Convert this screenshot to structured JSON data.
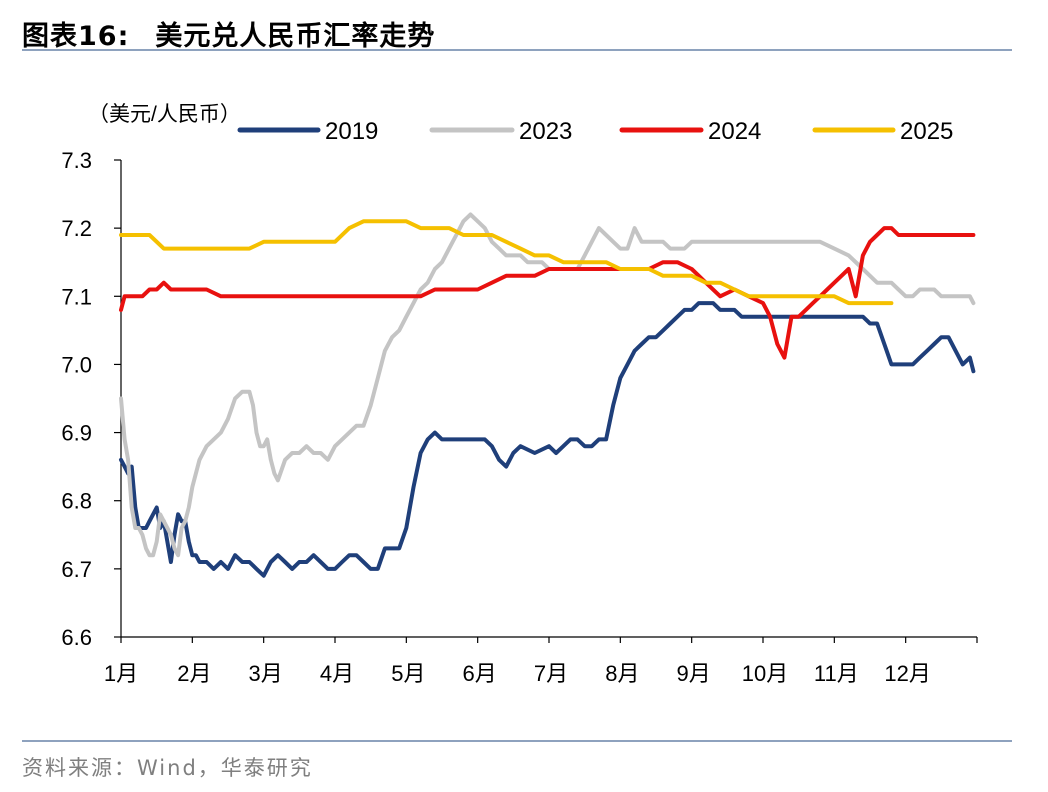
{
  "header": {
    "figure_label": "图表16:",
    "figure_title": "美元兑人民币汇率走势"
  },
  "source": "资料来源：Wind，华泰研究",
  "chart_data": {
    "type": "line",
    "title": "美元兑人民币汇率走势",
    "unit_label": "（美元/人民币）",
    "xlabel": "",
    "ylabel": "（美元/人民币）",
    "ylim": [
      6.6,
      7.3
    ],
    "y_ticks": [
      "6.6",
      "6.7",
      "6.8",
      "6.9",
      "7.0",
      "7.1",
      "7.2",
      "7.3"
    ],
    "x_range": [
      0,
      12
    ],
    "x_ticks": [
      "1月",
      "2月",
      "3月",
      "4月",
      "5月",
      "6月",
      "7月",
      "8月",
      "9月",
      "10月",
      "11月",
      "12月"
    ],
    "legend_position": "top",
    "colors": {
      "2019": "#1f3f7a",
      "2023": "#c4c4c4",
      "2024": "#e8110f",
      "2025": "#f5c000"
    },
    "series": [
      {
        "name": "2019",
        "x": [
          0.0,
          0.05,
          0.1,
          0.15,
          0.2,
          0.25,
          0.3,
          0.35,
          0.4,
          0.5,
          0.55,
          0.6,
          0.7,
          0.75,
          0.8,
          0.85,
          0.9,
          0.95,
          1.0,
          1.05,
          1.1,
          1.15,
          1.2,
          1.3,
          1.4,
          1.5,
          1.6,
          1.7,
          1.8,
          1.9,
          2.0,
          2.1,
          2.2,
          2.3,
          2.4,
          2.5,
          2.6,
          2.7,
          2.8,
          2.9,
          3.0,
          3.1,
          3.2,
          3.3,
          3.4,
          3.5,
          3.6,
          3.7,
          3.8,
          3.9,
          4.0,
          4.1,
          4.2,
          4.3,
          4.4,
          4.5,
          4.6,
          4.7,
          4.8,
          4.9,
          5.0,
          5.1,
          5.2,
          5.3,
          5.4,
          5.5,
          5.6,
          5.8,
          6.0,
          6.1,
          6.2,
          6.3,
          6.4,
          6.5,
          6.6,
          6.7,
          6.8,
          6.9,
          7.0,
          7.1,
          7.2,
          7.3,
          7.4,
          7.5,
          7.6,
          7.7,
          7.8,
          7.9,
          8.0,
          8.1,
          8.2,
          8.3,
          8.4,
          8.5,
          8.6,
          8.7,
          8.8,
          8.9,
          9.0,
          9.2,
          9.4,
          9.6,
          9.8,
          10.0,
          10.2,
          10.4,
          10.5,
          10.6,
          10.7,
          10.8,
          10.9,
          11.0,
          11.1,
          11.2,
          11.3,
          11.4,
          11.5,
          11.6,
          11.7,
          11.8,
          11.9,
          11.95
        ],
        "values": [
          6.86,
          6.85,
          6.84,
          6.85,
          6.79,
          6.76,
          6.76,
          6.76,
          6.77,
          6.79,
          6.76,
          6.77,
          6.71,
          6.75,
          6.78,
          6.77,
          6.77,
          6.74,
          6.72,
          6.72,
          6.71,
          6.71,
          6.71,
          6.7,
          6.71,
          6.7,
          6.72,
          6.71,
          6.71,
          6.7,
          6.69,
          6.71,
          6.72,
          6.71,
          6.7,
          6.71,
          6.71,
          6.72,
          6.71,
          6.7,
          6.7,
          6.71,
          6.72,
          6.72,
          6.71,
          6.7,
          6.7,
          6.73,
          6.73,
          6.73,
          6.76,
          6.82,
          6.87,
          6.89,
          6.9,
          6.89,
          6.89,
          6.89,
          6.89,
          6.89,
          6.89,
          6.89,
          6.88,
          6.86,
          6.85,
          6.87,
          6.88,
          6.87,
          6.88,
          6.87,
          6.88,
          6.89,
          6.89,
          6.88,
          6.88,
          6.89,
          6.89,
          6.94,
          6.98,
          7.0,
          7.02,
          7.03,
          7.04,
          7.04,
          7.05,
          7.06,
          7.07,
          7.08,
          7.08,
          7.09,
          7.09,
          7.09,
          7.08,
          7.08,
          7.08,
          7.07,
          7.07,
          7.07,
          7.07,
          7.07,
          7.07,
          7.07,
          7.07,
          7.07,
          7.07,
          7.07,
          7.06,
          7.06,
          7.03,
          7.0,
          7.0,
          7.0,
          7.0,
          7.01,
          7.02,
          7.03,
          7.04,
          7.04,
          7.02,
          7.0,
          7.01,
          6.99
        ],
        "label_note": ""
      },
      {
        "name": "2023",
        "x": [
          0.0,
          0.05,
          0.1,
          0.15,
          0.2,
          0.25,
          0.3,
          0.35,
          0.4,
          0.45,
          0.5,
          0.55,
          0.6,
          0.7,
          0.75,
          0.8,
          0.85,
          0.9,
          0.95,
          1.0,
          1.1,
          1.2,
          1.3,
          1.4,
          1.5,
          1.6,
          1.7,
          1.8,
          1.85,
          1.9,
          1.95,
          2.0,
          2.05,
          2.1,
          2.15,
          2.2,
          2.3,
          2.4,
          2.5,
          2.6,
          2.7,
          2.8,
          2.9,
          3.0,
          3.1,
          3.2,
          3.3,
          3.4,
          3.5,
          3.6,
          3.7,
          3.8,
          3.9,
          4.0,
          4.1,
          4.2,
          4.3,
          4.4,
          4.5,
          4.6,
          4.7,
          4.8,
          4.9,
          5.0,
          5.1,
          5.2,
          5.3,
          5.4,
          5.5,
          5.6,
          5.7,
          5.8,
          5.9,
          6.0,
          6.1,
          6.2,
          6.3,
          6.4,
          6.5,
          6.6,
          6.7,
          6.8,
          6.9,
          7.0,
          7.1,
          7.2,
          7.3,
          7.4,
          7.5,
          7.6,
          7.7,
          7.8,
          7.9,
          8.0,
          8.1,
          8.2,
          8.3,
          8.4,
          8.6,
          8.8,
          9.0,
          9.2,
          9.4,
          9.6,
          9.8,
          10.0,
          10.2,
          10.4,
          10.6,
          10.8,
          10.9,
          11.0,
          11.1,
          11.2,
          11.3,
          11.4,
          11.5,
          11.6,
          11.7,
          11.8,
          11.9,
          11.95
        ],
        "values": [
          6.95,
          6.89,
          6.86,
          6.79,
          6.76,
          6.76,
          6.75,
          6.73,
          6.72,
          6.72,
          6.74,
          6.78,
          6.77,
          6.75,
          6.73,
          6.72,
          6.76,
          6.77,
          6.79,
          6.82,
          6.86,
          6.88,
          6.89,
          6.9,
          6.92,
          6.95,
          6.96,
          6.96,
          6.94,
          6.9,
          6.88,
          6.88,
          6.89,
          6.86,
          6.84,
          6.83,
          6.86,
          6.87,
          6.87,
          6.88,
          6.87,
          6.87,
          6.86,
          6.88,
          6.89,
          6.9,
          6.91,
          6.91,
          6.94,
          6.98,
          7.02,
          7.04,
          7.05,
          7.07,
          7.09,
          7.11,
          7.12,
          7.14,
          7.15,
          7.17,
          7.19,
          7.21,
          7.22,
          7.21,
          7.2,
          7.18,
          7.17,
          7.16,
          7.16,
          7.16,
          7.15,
          7.15,
          7.15,
          7.14,
          7.14,
          7.14,
          7.14,
          7.14,
          7.16,
          7.18,
          7.2,
          7.19,
          7.18,
          7.17,
          7.17,
          7.2,
          7.18,
          7.18,
          7.18,
          7.18,
          7.17,
          7.17,
          7.17,
          7.18,
          7.18,
          7.18,
          7.18,
          7.18,
          7.18,
          7.18,
          7.18,
          7.18,
          7.18,
          7.18,
          7.18,
          7.17,
          7.16,
          7.14,
          7.12,
          7.12,
          7.11,
          7.1,
          7.1,
          7.11,
          7.11,
          7.11,
          7.1,
          7.1,
          7.1,
          7.1,
          7.1,
          7.09
        ],
        "label_note": ""
      },
      {
        "name": "2024",
        "x": [
          0.0,
          0.05,
          0.1,
          0.2,
          0.3,
          0.4,
          0.5,
          0.6,
          0.7,
          0.8,
          0.9,
          1.0,
          1.2,
          1.4,
          1.6,
          1.8,
          2.0,
          2.2,
          2.4,
          2.6,
          2.8,
          3.0,
          3.2,
          3.4,
          3.6,
          3.8,
          4.0,
          4.2,
          4.4,
          4.6,
          4.8,
          5.0,
          5.2,
          5.4,
          5.6,
          5.8,
          6.0,
          6.2,
          6.4,
          6.6,
          6.8,
          7.0,
          7.2,
          7.4,
          7.6,
          7.8,
          8.0,
          8.2,
          8.4,
          8.6,
          8.8,
          9.0,
          9.1,
          9.2,
          9.3,
          9.4,
          9.5,
          9.6,
          9.7,
          9.8,
          9.9,
          10.0,
          10.1,
          10.2,
          10.3,
          10.4,
          10.5,
          10.6,
          10.7,
          10.8,
          10.9,
          11.0,
          11.2,
          11.4,
          11.6,
          11.8,
          11.95
        ],
        "values": [
          7.08,
          7.1,
          7.1,
          7.1,
          7.1,
          7.11,
          7.11,
          7.12,
          7.11,
          7.11,
          7.11,
          7.11,
          7.11,
          7.1,
          7.1,
          7.1,
          7.1,
          7.1,
          7.1,
          7.1,
          7.1,
          7.1,
          7.1,
          7.1,
          7.1,
          7.1,
          7.1,
          7.1,
          7.11,
          7.11,
          7.11,
          7.11,
          7.12,
          7.13,
          7.13,
          7.13,
          7.14,
          7.14,
          7.14,
          7.14,
          7.14,
          7.14,
          7.14,
          7.14,
          7.15,
          7.15,
          7.14,
          7.12,
          7.1,
          7.11,
          7.1,
          7.09,
          7.07,
          7.03,
          7.01,
          7.07,
          7.07,
          7.08,
          7.09,
          7.1,
          7.11,
          7.12,
          7.13,
          7.14,
          7.1,
          7.16,
          7.18,
          7.19,
          7.2,
          7.2,
          7.19,
          7.19,
          7.19,
          7.19,
          7.19,
          7.19,
          7.19
        ],
        "label_note": ""
      },
      {
        "name": "2025",
        "x": [
          0.0,
          0.2,
          0.4,
          0.6,
          0.8,
          1.0,
          1.2,
          1.4,
          1.6,
          1.8,
          2.0,
          2.2,
          2.4,
          2.6,
          2.8,
          3.0,
          3.2,
          3.4,
          3.6,
          3.8,
          4.0,
          4.2,
          4.4,
          4.6,
          4.8,
          5.0,
          5.2,
          5.4,
          5.6,
          5.8,
          6.0,
          6.2,
          6.4,
          6.6,
          6.8,
          7.0,
          7.2,
          7.4,
          7.6,
          7.8,
          8.0,
          8.2,
          8.4,
          8.6,
          8.8,
          9.0,
          9.2,
          9.4,
          9.6,
          9.8,
          10.0,
          10.2,
          10.4,
          10.6,
          10.8
        ],
        "values": [
          7.19,
          7.19,
          7.19,
          7.17,
          7.17,
          7.17,
          7.17,
          7.17,
          7.17,
          7.17,
          7.18,
          7.18,
          7.18,
          7.18,
          7.18,
          7.18,
          7.2,
          7.21,
          7.21,
          7.21,
          7.21,
          7.2,
          7.2,
          7.2,
          7.19,
          7.19,
          7.19,
          7.18,
          7.17,
          7.16,
          7.16,
          7.15,
          7.15,
          7.15,
          7.15,
          7.14,
          7.14,
          7.14,
          7.13,
          7.13,
          7.13,
          7.12,
          7.12,
          7.11,
          7.1,
          7.1,
          7.1,
          7.1,
          7.1,
          7.1,
          7.1,
          7.09,
          7.09,
          7.09,
          7.09
        ],
        "label_note": ""
      }
    ]
  }
}
